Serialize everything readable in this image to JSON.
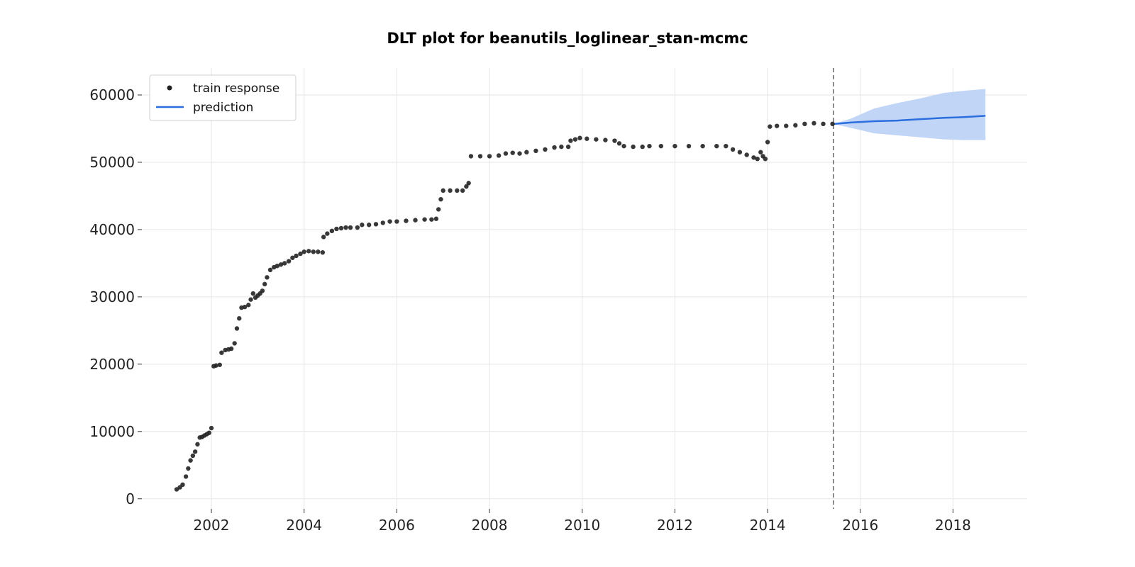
{
  "chart_data": {
    "type": "scatter",
    "title": "DLT plot for beanutils_loglinear_stan-mcmc",
    "xlabel": "",
    "ylabel": "",
    "xlim": [
      2000.5,
      2019.6
    ],
    "ylim": [
      -1500,
      64000
    ],
    "x_ticks": [
      {
        "value": 2002,
        "label": "2002"
      },
      {
        "value": 2004,
        "label": "2004"
      },
      {
        "value": 2006,
        "label": "2006"
      },
      {
        "value": 2008,
        "label": "2008"
      },
      {
        "value": 2010,
        "label": "2010"
      },
      {
        "value": 2012,
        "label": "2012"
      },
      {
        "value": 2014,
        "label": "2014"
      },
      {
        "value": 2016,
        "label": "2016"
      },
      {
        "value": 2018,
        "label": "2018"
      }
    ],
    "y_ticks": [
      {
        "value": 0,
        "label": "0"
      },
      {
        "value": 10000,
        "label": "10000"
      },
      {
        "value": 20000,
        "label": "20000"
      },
      {
        "value": 30000,
        "label": "30000"
      },
      {
        "value": 40000,
        "label": "40000"
      },
      {
        "value": 50000,
        "label": "50000"
      },
      {
        "value": 60000,
        "label": "60000"
      }
    ],
    "grid": true,
    "legend": {
      "position": "top-left",
      "entries": [
        {
          "label": "train response",
          "marker": "dot",
          "color": "#222222"
        },
        {
          "label": "prediction",
          "marker": "line",
          "color": "#2a6ee0"
        }
      ]
    },
    "split_date": 2015.42,
    "series": [
      {
        "name": "train response",
        "kind": "scatter",
        "color": "#222222",
        "points": [
          [
            2001.25,
            1400
          ],
          [
            2001.32,
            1700
          ],
          [
            2001.38,
            2100
          ],
          [
            2001.45,
            3300
          ],
          [
            2001.5,
            4500
          ],
          [
            2001.55,
            5700
          ],
          [
            2001.6,
            6400
          ],
          [
            2001.65,
            7000
          ],
          [
            2001.7,
            8100
          ],
          [
            2001.75,
            9100
          ],
          [
            2001.8,
            9200
          ],
          [
            2001.85,
            9400
          ],
          [
            2001.9,
            9600
          ],
          [
            2001.95,
            9800
          ],
          [
            2002.0,
            10500
          ],
          [
            2002.05,
            19700
          ],
          [
            2002.1,
            19800
          ],
          [
            2002.18,
            19900
          ],
          [
            2002.22,
            21700
          ],
          [
            2002.3,
            22100
          ],
          [
            2002.37,
            22200
          ],
          [
            2002.43,
            22300
          ],
          [
            2002.5,
            23100
          ],
          [
            2002.55,
            25300
          ],
          [
            2002.6,
            26800
          ],
          [
            2002.65,
            28400
          ],
          [
            2002.72,
            28500
          ],
          [
            2002.8,
            28800
          ],
          [
            2002.85,
            29600
          ],
          [
            2002.9,
            30500
          ],
          [
            2002.95,
            29900
          ],
          [
            2003.0,
            30200
          ],
          [
            2003.05,
            30500
          ],
          [
            2003.1,
            30900
          ],
          [
            2003.15,
            31900
          ],
          [
            2003.2,
            32900
          ],
          [
            2003.27,
            34000
          ],
          [
            2003.35,
            34400
          ],
          [
            2003.42,
            34600
          ],
          [
            2003.5,
            34800
          ],
          [
            2003.58,
            35000
          ],
          [
            2003.67,
            35300
          ],
          [
            2003.75,
            35800
          ],
          [
            2003.83,
            36100
          ],
          [
            2003.92,
            36400
          ],
          [
            2004.0,
            36700
          ],
          [
            2004.1,
            36800
          ],
          [
            2004.2,
            36700
          ],
          [
            2004.3,
            36700
          ],
          [
            2004.4,
            36600
          ],
          [
            2004.42,
            38900
          ],
          [
            2004.5,
            39400
          ],
          [
            2004.6,
            39800
          ],
          [
            2004.7,
            40100
          ],
          [
            2004.8,
            40200
          ],
          [
            2004.9,
            40300
          ],
          [
            2005.0,
            40300
          ],
          [
            2005.15,
            40300
          ],
          [
            2005.25,
            40700
          ],
          [
            2005.4,
            40700
          ],
          [
            2005.55,
            40800
          ],
          [
            2005.7,
            41000
          ],
          [
            2005.85,
            41200
          ],
          [
            2006.0,
            41200
          ],
          [
            2006.2,
            41300
          ],
          [
            2006.4,
            41400
          ],
          [
            2006.6,
            41500
          ],
          [
            2006.75,
            41500
          ],
          [
            2006.85,
            41600
          ],
          [
            2006.9,
            43000
          ],
          [
            2006.95,
            44500
          ],
          [
            2007.0,
            45800
          ],
          [
            2007.15,
            45800
          ],
          [
            2007.3,
            45800
          ],
          [
            2007.42,
            45800
          ],
          [
            2007.5,
            46400
          ],
          [
            2007.55,
            46900
          ],
          [
            2007.6,
            50900
          ],
          [
            2007.8,
            50900
          ],
          [
            2008.0,
            50900
          ],
          [
            2008.2,
            51000
          ],
          [
            2008.35,
            51300
          ],
          [
            2008.5,
            51400
          ],
          [
            2008.65,
            51300
          ],
          [
            2008.8,
            51500
          ],
          [
            2009.0,
            51700
          ],
          [
            2009.2,
            51900
          ],
          [
            2009.4,
            52200
          ],
          [
            2009.55,
            52300
          ],
          [
            2009.7,
            52300
          ],
          [
            2009.75,
            53200
          ],
          [
            2009.85,
            53400
          ],
          [
            2009.95,
            53600
          ],
          [
            2010.1,
            53500
          ],
          [
            2010.3,
            53400
          ],
          [
            2010.5,
            53300
          ],
          [
            2010.7,
            53200
          ],
          [
            2010.8,
            52800
          ],
          [
            2010.9,
            52400
          ],
          [
            2011.1,
            52300
          ],
          [
            2011.3,
            52300
          ],
          [
            2011.45,
            52400
          ],
          [
            2011.7,
            52400
          ],
          [
            2012.0,
            52400
          ],
          [
            2012.3,
            52400
          ],
          [
            2012.6,
            52400
          ],
          [
            2012.9,
            52400
          ],
          [
            2013.1,
            52400
          ],
          [
            2013.25,
            51900
          ],
          [
            2013.4,
            51500
          ],
          [
            2013.55,
            51100
          ],
          [
            2013.7,
            50700
          ],
          [
            2013.78,
            50500
          ],
          [
            2013.85,
            51500
          ],
          [
            2013.9,
            50900
          ],
          [
            2013.95,
            50500
          ],
          [
            2014.0,
            53000
          ],
          [
            2014.05,
            55300
          ],
          [
            2014.2,
            55400
          ],
          [
            2014.4,
            55400
          ],
          [
            2014.6,
            55500
          ],
          [
            2014.8,
            55700
          ],
          [
            2015.0,
            55800
          ],
          [
            2015.2,
            55700
          ],
          [
            2015.4,
            55700
          ]
        ]
      },
      {
        "name": "prediction",
        "kind": "line",
        "color": "#2a6ee0",
        "points": [
          [
            2015.42,
            55700
          ],
          [
            2015.8,
            55900
          ],
          [
            2016.3,
            56100
          ],
          [
            2016.8,
            56200
          ],
          [
            2017.3,
            56400
          ],
          [
            2017.8,
            56600
          ],
          [
            2018.2,
            56700
          ],
          [
            2018.7,
            56900
          ]
        ]
      },
      {
        "name": "prediction interval",
        "kind": "band",
        "color": "#bed3f6",
        "x": [
          2015.42,
          2015.8,
          2016.3,
          2016.8,
          2017.3,
          2017.8,
          2018.2,
          2018.7
        ],
        "lower": [
          55700,
          55100,
          54300,
          54000,
          53700,
          53400,
          53300,
          53300
        ],
        "upper": [
          55700,
          56500,
          58000,
          58800,
          59500,
          60300,
          60600,
          60900
        ]
      }
    ]
  }
}
